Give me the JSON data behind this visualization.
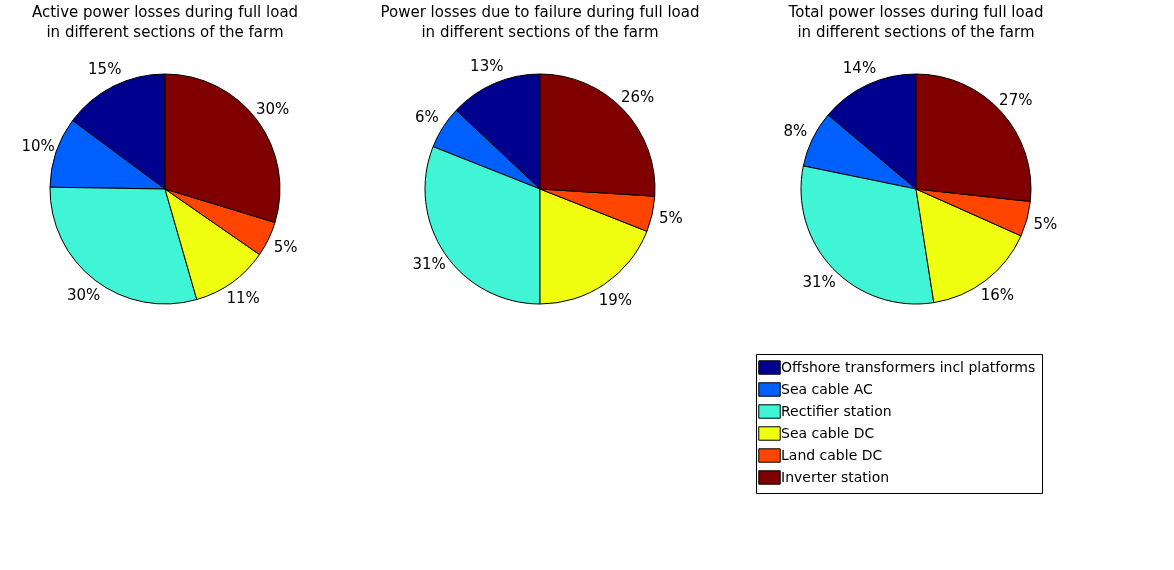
{
  "chart_data": [
    {
      "type": "pie",
      "title": "Active power losses during full load\nin different sections of the farm",
      "categories": [
        null,
        null,
        null,
        null,
        null,
        null
      ],
      "values": [
        15,
        10,
        30,
        11,
        5,
        30
      ],
      "value_labels": [
        "15%",
        "10%",
        "30%",
        "11%",
        "5%",
        "30%"
      ],
      "colors": [
        "#00008f",
        "#0060ff",
        "#3ff5d5",
        "#f0ff10",
        "#ff4500",
        "#800000"
      ],
      "legend": false
    },
    {
      "type": "pie",
      "title": "Power losses due to failure during full load\nin different sections of the farm",
      "categories": [
        null,
        null,
        null,
        null,
        null,
        null
      ],
      "values": [
        13,
        6,
        31,
        19,
        5,
        26
      ],
      "value_labels": [
        "13%",
        "6%",
        "31%",
        "19%",
        "5%",
        "26%"
      ],
      "colors": [
        "#00008f",
        "#0060ff",
        "#3ff5d5",
        "#f0ff10",
        "#ff4500",
        "#800000"
      ],
      "legend": false
    },
    {
      "type": "pie",
      "title": "Total power losses during full load\nin different sections of the farm",
      "categories": [
        "Offshore transformers incl platforms",
        " Sea cable AC",
        "Rectifier station",
        "Sea cable DC",
        "Land cable DC",
        "Inverter station"
      ],
      "values": [
        14,
        8,
        31,
        16,
        5,
        27
      ],
      "value_labels": [
        "14%",
        "8%",
        "31%",
        "16%",
        "5%",
        "27%"
      ],
      "colors": [
        "#00008f",
        "#0060ff",
        "#3ff5d5",
        "#f0ff10",
        "#ff4500",
        "#800000"
      ],
      "legend": "bottom"
    }
  ]
}
